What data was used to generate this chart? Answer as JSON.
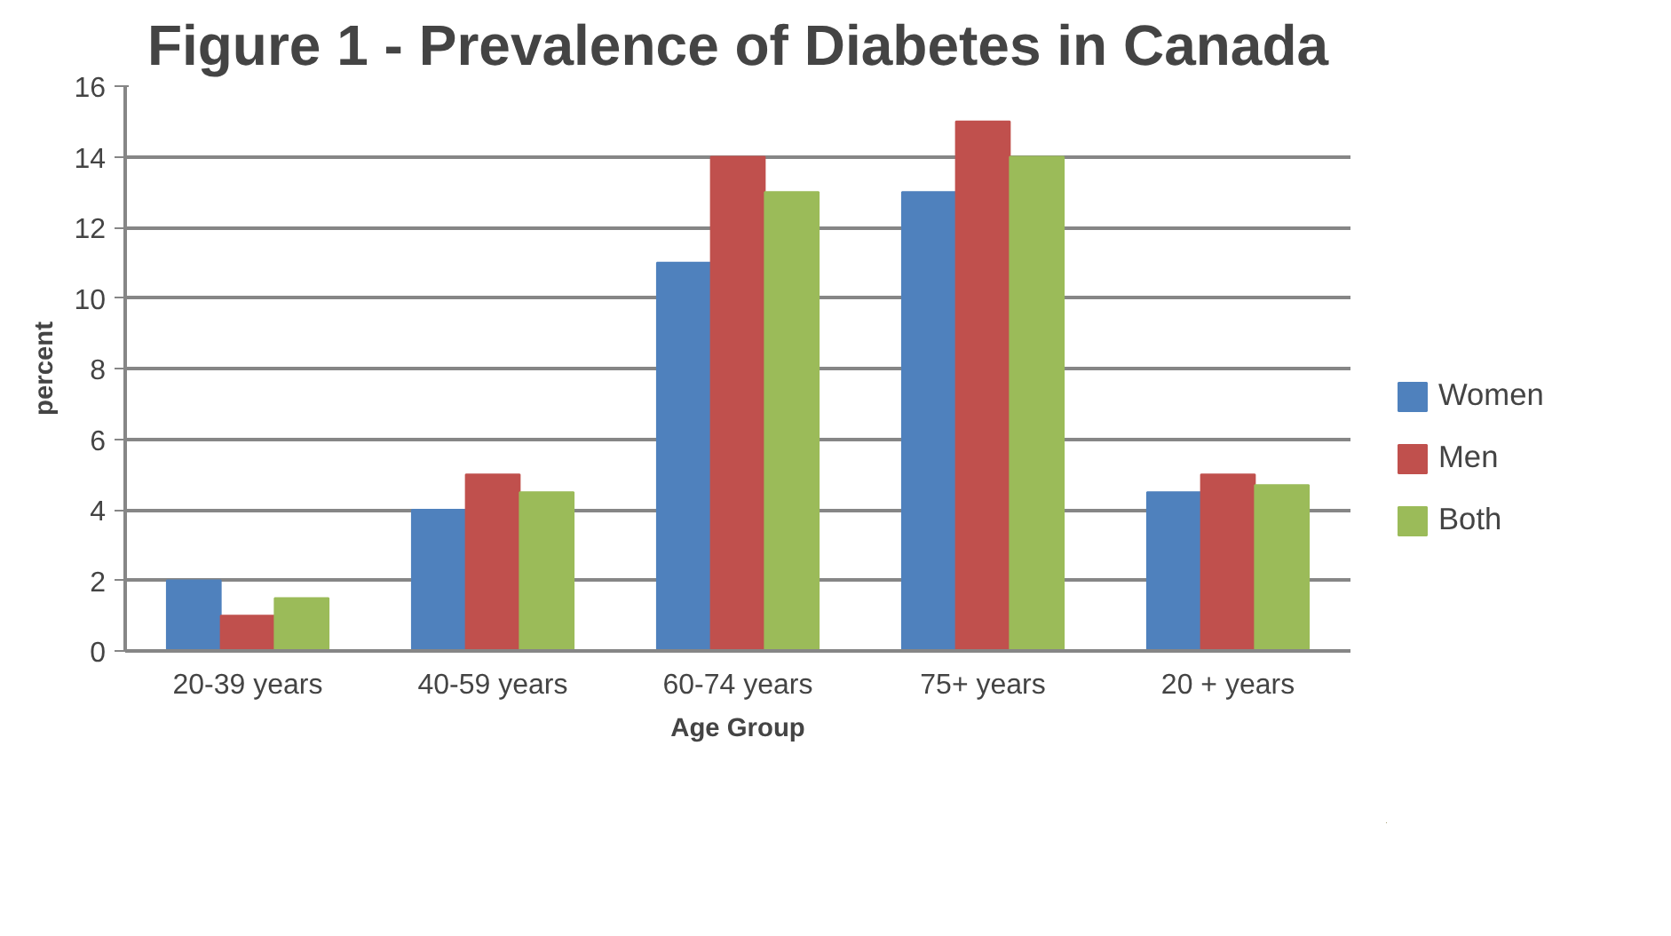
{
  "chart_data": {
    "type": "bar",
    "title": "Figure 1 - Prevalence of Diabetes in Canada",
    "xlabel": "Age Group",
    "ylabel": "percent",
    "categories": [
      "20-39 years",
      "40-59 years",
      "60-74 years",
      "75+ years",
      "20 + years"
    ],
    "series": [
      {
        "name": "Women",
        "color": "#4f81bd",
        "values": [
          2,
          4,
          11,
          13,
          4.5
        ]
      },
      {
        "name": "Men",
        "color": "#c0504d",
        "values": [
          1,
          5,
          14,
          15,
          5
        ]
      },
      {
        "name": "Both",
        "color": "#9bbb59",
        "values": [
          1.5,
          4.5,
          13,
          14,
          4.7
        ]
      }
    ],
    "ylim": [
      0,
      16
    ],
    "yticks": [
      0,
      2,
      4,
      6,
      8,
      10,
      12,
      14,
      16
    ],
    "grid": "y",
    "legend": "right"
  }
}
